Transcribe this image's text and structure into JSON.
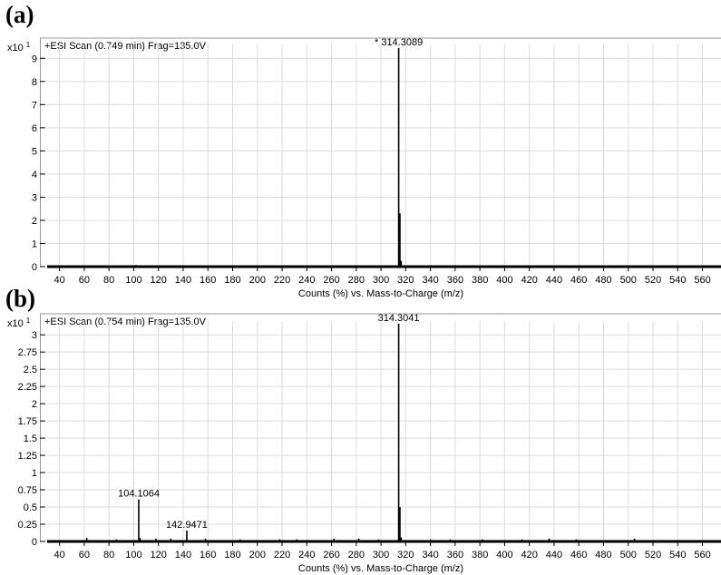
{
  "panels": [
    {
      "letter": "(a)"
    },
    {
      "letter": "(b)"
    }
  ],
  "chart_data": [
    {
      "type": "bar",
      "panel": "(a)",
      "scan_label": "+ESI Scan (0.749 min) Frag=135.0V",
      "y_multiplier": "x10 1",
      "xlabel": "Counts (%) vs. Mass-to-Charge (m/z)",
      "xlim": [
        30,
        575
      ],
      "ylim": [
        0,
        9.6
      ],
      "xticks": [
        40,
        60,
        80,
        100,
        120,
        140,
        160,
        180,
        200,
        220,
        240,
        260,
        280,
        300,
        320,
        340,
        360,
        380,
        400,
        420,
        440,
        460,
        480,
        500,
        520,
        540,
        560
      ],
      "yticks": [
        {
          "value": 0,
          "label": "0"
        },
        {
          "value": 1,
          "label": "1"
        },
        {
          "value": 2,
          "label": "2"
        },
        {
          "value": 3,
          "label": "3"
        },
        {
          "value": 4,
          "label": "4"
        },
        {
          "value": 5,
          "label": "5"
        },
        {
          "value": 6,
          "label": "6"
        },
        {
          "value": 7,
          "label": "7"
        },
        {
          "value": 8,
          "label": "8"
        },
        {
          "value": 9,
          "label": "9"
        }
      ],
      "grid": true,
      "peaks": [
        {
          "mz": 102,
          "intensity": 0.07
        },
        {
          "mz": 314.3089,
          "intensity": 9.45
        },
        {
          "mz": 315.3,
          "intensity": 2.3
        },
        {
          "mz": 316.3,
          "intensity": 0.25
        },
        {
          "mz": 340,
          "intensity": 0.05
        }
      ],
      "annotations": [
        {
          "mz": 314.3089,
          "intensity": 9.45,
          "text": "* 314.3089"
        }
      ]
    },
    {
      "type": "bar",
      "panel": "(b)",
      "scan_label": "+ESI Scan (0.754 min) Frag=135.0V",
      "y_multiplier": "x10 1",
      "xlabel": "Counts (%) vs. Mass-to-Charge (m/z)",
      "xlim": [
        30,
        575
      ],
      "ylim": [
        0,
        3.2
      ],
      "xticks": [
        40,
        60,
        80,
        100,
        120,
        140,
        160,
        180,
        200,
        220,
        240,
        260,
        280,
        300,
        320,
        340,
        360,
        380,
        400,
        420,
        440,
        460,
        480,
        500,
        520,
        540,
        560
      ],
      "yticks": [
        {
          "value": 0,
          "label": "0"
        },
        {
          "value": 0.25,
          "label": "0.25"
        },
        {
          "value": 0.5,
          "label": "0.5"
        },
        {
          "value": 0.75,
          "label": "0.75"
        },
        {
          "value": 1,
          "label": "1"
        },
        {
          "value": 1.25,
          "label": "1.25"
        },
        {
          "value": 1.5,
          "label": "1.5"
        },
        {
          "value": 1.75,
          "label": "1.75"
        },
        {
          "value": 2,
          "label": "2"
        },
        {
          "value": 2.25,
          "label": "2.25"
        },
        {
          "value": 2.5,
          "label": "2.5"
        },
        {
          "value": 2.75,
          "label": "2.75"
        },
        {
          "value": 3,
          "label": "3"
        }
      ],
      "grid": true,
      "peaks": [
        {
          "mz": 62,
          "intensity": 0.05
        },
        {
          "mz": 86,
          "intensity": 0.03
        },
        {
          "mz": 104.1064,
          "intensity": 0.61
        },
        {
          "mz": 105.1,
          "intensity": 0.05
        },
        {
          "mz": 118,
          "intensity": 0.04
        },
        {
          "mz": 130,
          "intensity": 0.04
        },
        {
          "mz": 142.9471,
          "intensity": 0.16
        },
        {
          "mz": 158,
          "intensity": 0.04
        },
        {
          "mz": 186,
          "intensity": 0.03
        },
        {
          "mz": 218,
          "intensity": 0.03
        },
        {
          "mz": 232,
          "intensity": 0.03
        },
        {
          "mz": 262,
          "intensity": 0.04
        },
        {
          "mz": 282,
          "intensity": 0.04
        },
        {
          "mz": 298,
          "intensity": 0.03
        },
        {
          "mz": 314.3041,
          "intensity": 3.16
        },
        {
          "mz": 315.3,
          "intensity": 0.5
        },
        {
          "mz": 316.3,
          "intensity": 0.06
        },
        {
          "mz": 340,
          "intensity": 0.03
        },
        {
          "mz": 356,
          "intensity": 0.03
        },
        {
          "mz": 382,
          "intensity": 0.03
        },
        {
          "mz": 414,
          "intensity": 0.03
        },
        {
          "mz": 436,
          "intensity": 0.04
        },
        {
          "mz": 458,
          "intensity": 0.03
        },
        {
          "mz": 505,
          "intensity": 0.04
        }
      ],
      "annotations": [
        {
          "mz": 314.3041,
          "intensity": 3.16,
          "text": "314.3041"
        },
        {
          "mz": 104.1064,
          "intensity": 0.61,
          "text": "104.1064"
        },
        {
          "mz": 142.9471,
          "intensity": 0.16,
          "text": "142.9471"
        }
      ]
    }
  ]
}
